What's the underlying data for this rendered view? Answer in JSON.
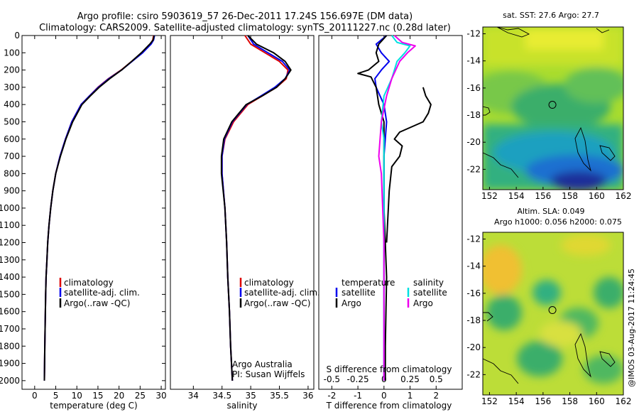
{
  "titles": {
    "line1": "Argo profile: csiro 5903619_57 26-Dec-2011 17.24S 156.697E (DM data)",
    "line2": "Climatology: CARS2009. Satellite-adjusted climatology: synTS_20111227.nc (0.28d later)"
  },
  "colors": {
    "climatology": "#dd0000",
    "satellite": "#0000ee",
    "argo": "#000000",
    "sal_sat": "#00e0e0",
    "sal_argo": "#ee00ee"
  },
  "legend_profiles": [
    "climatology",
    "satellite-adj. clim.",
    "Argo(..raw -QC)"
  ],
  "legend_diff": {
    "temp_header": "temperature",
    "sal_header": "salinity",
    "temp_satellite": "satellite",
    "temp_argo": "Argo",
    "sal_satellite": "satellite",
    "sal_argo": "Argo"
  },
  "annotation": {
    "line1": "Argo Australia",
    "line2": "PI: Susan Wijffels"
  },
  "map_top_title": "sat. SST: 27.6 Argo: 27.7",
  "map_bottom_title1": "Altim. SLA: 0.049",
  "map_bottom_title2": "Argo h1000: 0.056 h2000: 0.075",
  "side_stamp": "@IMOS 03-Aug-2017 11:24:45",
  "chart_data": [
    {
      "type": "line",
      "title": "",
      "xlabel": "temperature (deg C)",
      "ylabel": "",
      "xlim": [
        -3,
        31
      ],
      "ylim": [
        2050,
        0
      ],
      "xticks": [
        0,
        5,
        10,
        15,
        20,
        25,
        30
      ],
      "yticks": [
        0,
        100,
        200,
        300,
        400,
        500,
        600,
        700,
        800,
        900,
        1000,
        1100,
        1200,
        1300,
        1400,
        1500,
        1600,
        1700,
        1800,
        1900,
        2000
      ],
      "series": [
        {
          "name": "climatology",
          "color": "#dd0000",
          "x": [
            28.2,
            28.0,
            27.5,
            25.5,
            23.0,
            20.5,
            17.5,
            15.0,
            13.0,
            11.0,
            8.8,
            7.3,
            6.0,
            5.0,
            4.3,
            3.8,
            3.4,
            3.1,
            2.9,
            2.7,
            2.6,
            2.4,
            2.3
          ],
          "y": [
            0,
            25,
            50,
            100,
            150,
            200,
            250,
            300,
            350,
            400,
            500,
            600,
            700,
            800,
            900,
            1000,
            1100,
            1200,
            1300,
            1400,
            1500,
            1800,
            2000
          ]
        },
        {
          "name": "satellite-adj. clim.",
          "color": "#0000ee",
          "x": [
            28.4,
            28.2,
            27.6,
            25.6,
            23.1,
            20.6,
            17.6,
            15.1,
            13.0,
            11.0,
            8.8,
            7.3,
            6.0,
            5.0,
            4.3,
            3.8,
            3.4,
            3.1,
            2.9,
            2.7,
            2.6,
            2.4,
            2.3
          ],
          "y": [
            0,
            25,
            50,
            100,
            150,
            200,
            250,
            300,
            350,
            400,
            500,
            600,
            700,
            800,
            900,
            1000,
            1100,
            1200,
            1300,
            1400,
            1500,
            1800,
            2000
          ]
        },
        {
          "name": "Argo(..raw -QC)",
          "color": "#000000",
          "x": [
            28.3,
            28.1,
            27.3,
            25.3,
            23.0,
            20.6,
            17.8,
            15.3,
            13.2,
            11.2,
            9.0,
            7.4,
            6.1,
            5.0,
            4.3,
            3.8,
            3.4,
            3.1,
            2.9,
            2.7,
            2.6,
            2.4,
            2.3
          ],
          "y": [
            0,
            25,
            50,
            100,
            150,
            200,
            250,
            300,
            350,
            400,
            500,
            600,
            700,
            800,
            900,
            1000,
            1100,
            1200,
            1300,
            1400,
            1500,
            1800,
            2000
          ]
        }
      ]
    },
    {
      "type": "line",
      "title": "",
      "xlabel": "salinity",
      "ylabel": "",
      "xlim": [
        33.6,
        36.1
      ],
      "ylim": [
        2050,
        0
      ],
      "xticks": [
        34,
        34.5,
        35,
        35.5,
        36
      ],
      "yticks": [],
      "series": [
        {
          "name": "climatology",
          "color": "#dd0000",
          "x": [
            34.9,
            35.0,
            35.25,
            35.5,
            35.65,
            35.62,
            35.45,
            35.2,
            34.95,
            34.7,
            34.55,
            34.5,
            34.5,
            34.55,
            34.58,
            34.6,
            34.63,
            34.65,
            34.68
          ],
          "y": [
            0,
            50,
            100,
            150,
            200,
            250,
            300,
            350,
            400,
            500,
            600,
            700,
            800,
            1000,
            1200,
            1400,
            1600,
            1800,
            2000
          ]
        },
        {
          "name": "satellite-adj. clim.",
          "color": "#0000ee",
          "x": [
            34.95,
            35.05,
            35.3,
            35.55,
            35.68,
            35.6,
            35.42,
            35.18,
            34.93,
            34.68,
            34.54,
            34.5,
            34.5,
            34.55,
            34.58,
            34.6,
            34.63,
            34.65,
            34.68
          ],
          "y": [
            0,
            50,
            100,
            150,
            200,
            250,
            300,
            350,
            400,
            500,
            600,
            700,
            800,
            1000,
            1200,
            1400,
            1600,
            1800,
            2000
          ]
        },
        {
          "name": "Argo(..raw -QC)",
          "color": "#000000",
          "x": [
            34.95,
            35.1,
            35.4,
            35.6,
            35.7,
            35.6,
            35.45,
            35.2,
            34.92,
            34.67,
            34.53,
            34.49,
            34.49,
            34.55,
            34.58,
            34.6,
            34.63,
            34.65,
            34.68
          ],
          "y": [
            0,
            50,
            100,
            150,
            200,
            250,
            300,
            350,
            400,
            500,
            600,
            700,
            800,
            1000,
            1200,
            1400,
            1600,
            1800,
            2000
          ]
        }
      ]
    },
    {
      "type": "line",
      "title": "S difference from climatology",
      "xlabel": "T difference from climatology",
      "ylabel": "",
      "xlim": [
        -2.5,
        3
      ],
      "ylim": [
        2050,
        0
      ],
      "xticks": [
        -2,
        -1,
        0,
        1,
        2
      ],
      "xticks_top": [
        -0.5,
        -0.25,
        0,
        0.25,
        0.5
      ],
      "top_scale_factor": 4,
      "yticks": [],
      "series": [
        {
          "name": "temperature satellite",
          "color": "#0000ee",
          "x": [
            0.1,
            -0.3,
            -0.1,
            0.2,
            -0.1,
            -0.35,
            -0.3,
            0.0,
            0.1,
            0.0,
            0.0,
            0.0,
            0.0,
            0.0
          ],
          "y": [
            0,
            50,
            100,
            150,
            200,
            250,
            300,
            400,
            500,
            700,
            1000,
            1400,
            1800,
            2000
          ]
        },
        {
          "name": "temperature Argo",
          "color": "#000000",
          "x": [
            0.1,
            -0.2,
            -0.3,
            -0.2,
            -0.6,
            -1.0,
            -0.5,
            -0.3,
            -0.2,
            0.0,
            0.0,
            0.1,
            0.05,
            0.05
          ],
          "y": [
            0,
            50,
            100,
            150,
            200,
            220,
            240,
            300,
            400,
            500,
            1000,
            1400,
            1800,
            2000
          ]
        },
        {
          "name": "salinity satellite",
          "color": "#00e0e0",
          "x": [
            0.3,
            0.5,
            1.0,
            0.8,
            0.5,
            0.3,
            0.0,
            -0.1,
            0.0,
            0.0,
            0.0,
            0.0,
            0.0
          ],
          "y": [
            0,
            40,
            60,
            100,
            150,
            250,
            350,
            500,
            600,
            800,
            1200,
            1600,
            2000
          ]
        },
        {
          "name": "salinity Argo",
          "color": "#ee00ee",
          "x": [
            0.4,
            0.7,
            1.2,
            0.9,
            0.6,
            0.3,
            0.1,
            -0.1,
            -0.2,
            -0.1,
            0.0,
            0.0,
            0.0
          ],
          "y": [
            0,
            40,
            60,
            100,
            150,
            250,
            350,
            500,
            700,
            800,
            1200,
            1600,
            2000
          ]
        },
        {
          "name": "Argo salinity difference (deep)",
          "color": "#000000",
          "x": [
            1.5,
            1.6,
            1.8,
            1.7,
            1.5,
            0.6,
            0.4,
            0.7,
            0.6,
            0.3,
            0.2,
            0.1
          ],
          "y": [
            300,
            350,
            400,
            450,
            500,
            560,
            600,
            640,
            700,
            760,
            900,
            1200
          ]
        }
      ]
    },
    {
      "type": "heatmap",
      "title": "sat. SST: 27.6 Argo: 27.7",
      "xlim": [
        151.5,
        162
      ],
      "ylim": [
        -23.5,
        -11.5
      ],
      "xticks": [
        152,
        154,
        156,
        158,
        160,
        162
      ],
      "yticks": [
        -12,
        -14,
        -16,
        -18,
        -20,
        -22
      ],
      "marker": {
        "lon": 156.7,
        "lat": -17.24
      }
    },
    {
      "type": "heatmap",
      "title": "Altim. SLA: 0.049",
      "xlim": [
        151.5,
        162
      ],
      "ylim": [
        -23.5,
        -11.5
      ],
      "xticks": [
        152,
        154,
        156,
        158,
        160,
        162
      ],
      "yticks": [
        -12,
        -14,
        -16,
        -18,
        -20,
        -22
      ],
      "marker": {
        "lon": 156.7,
        "lat": -17.24
      }
    }
  ]
}
